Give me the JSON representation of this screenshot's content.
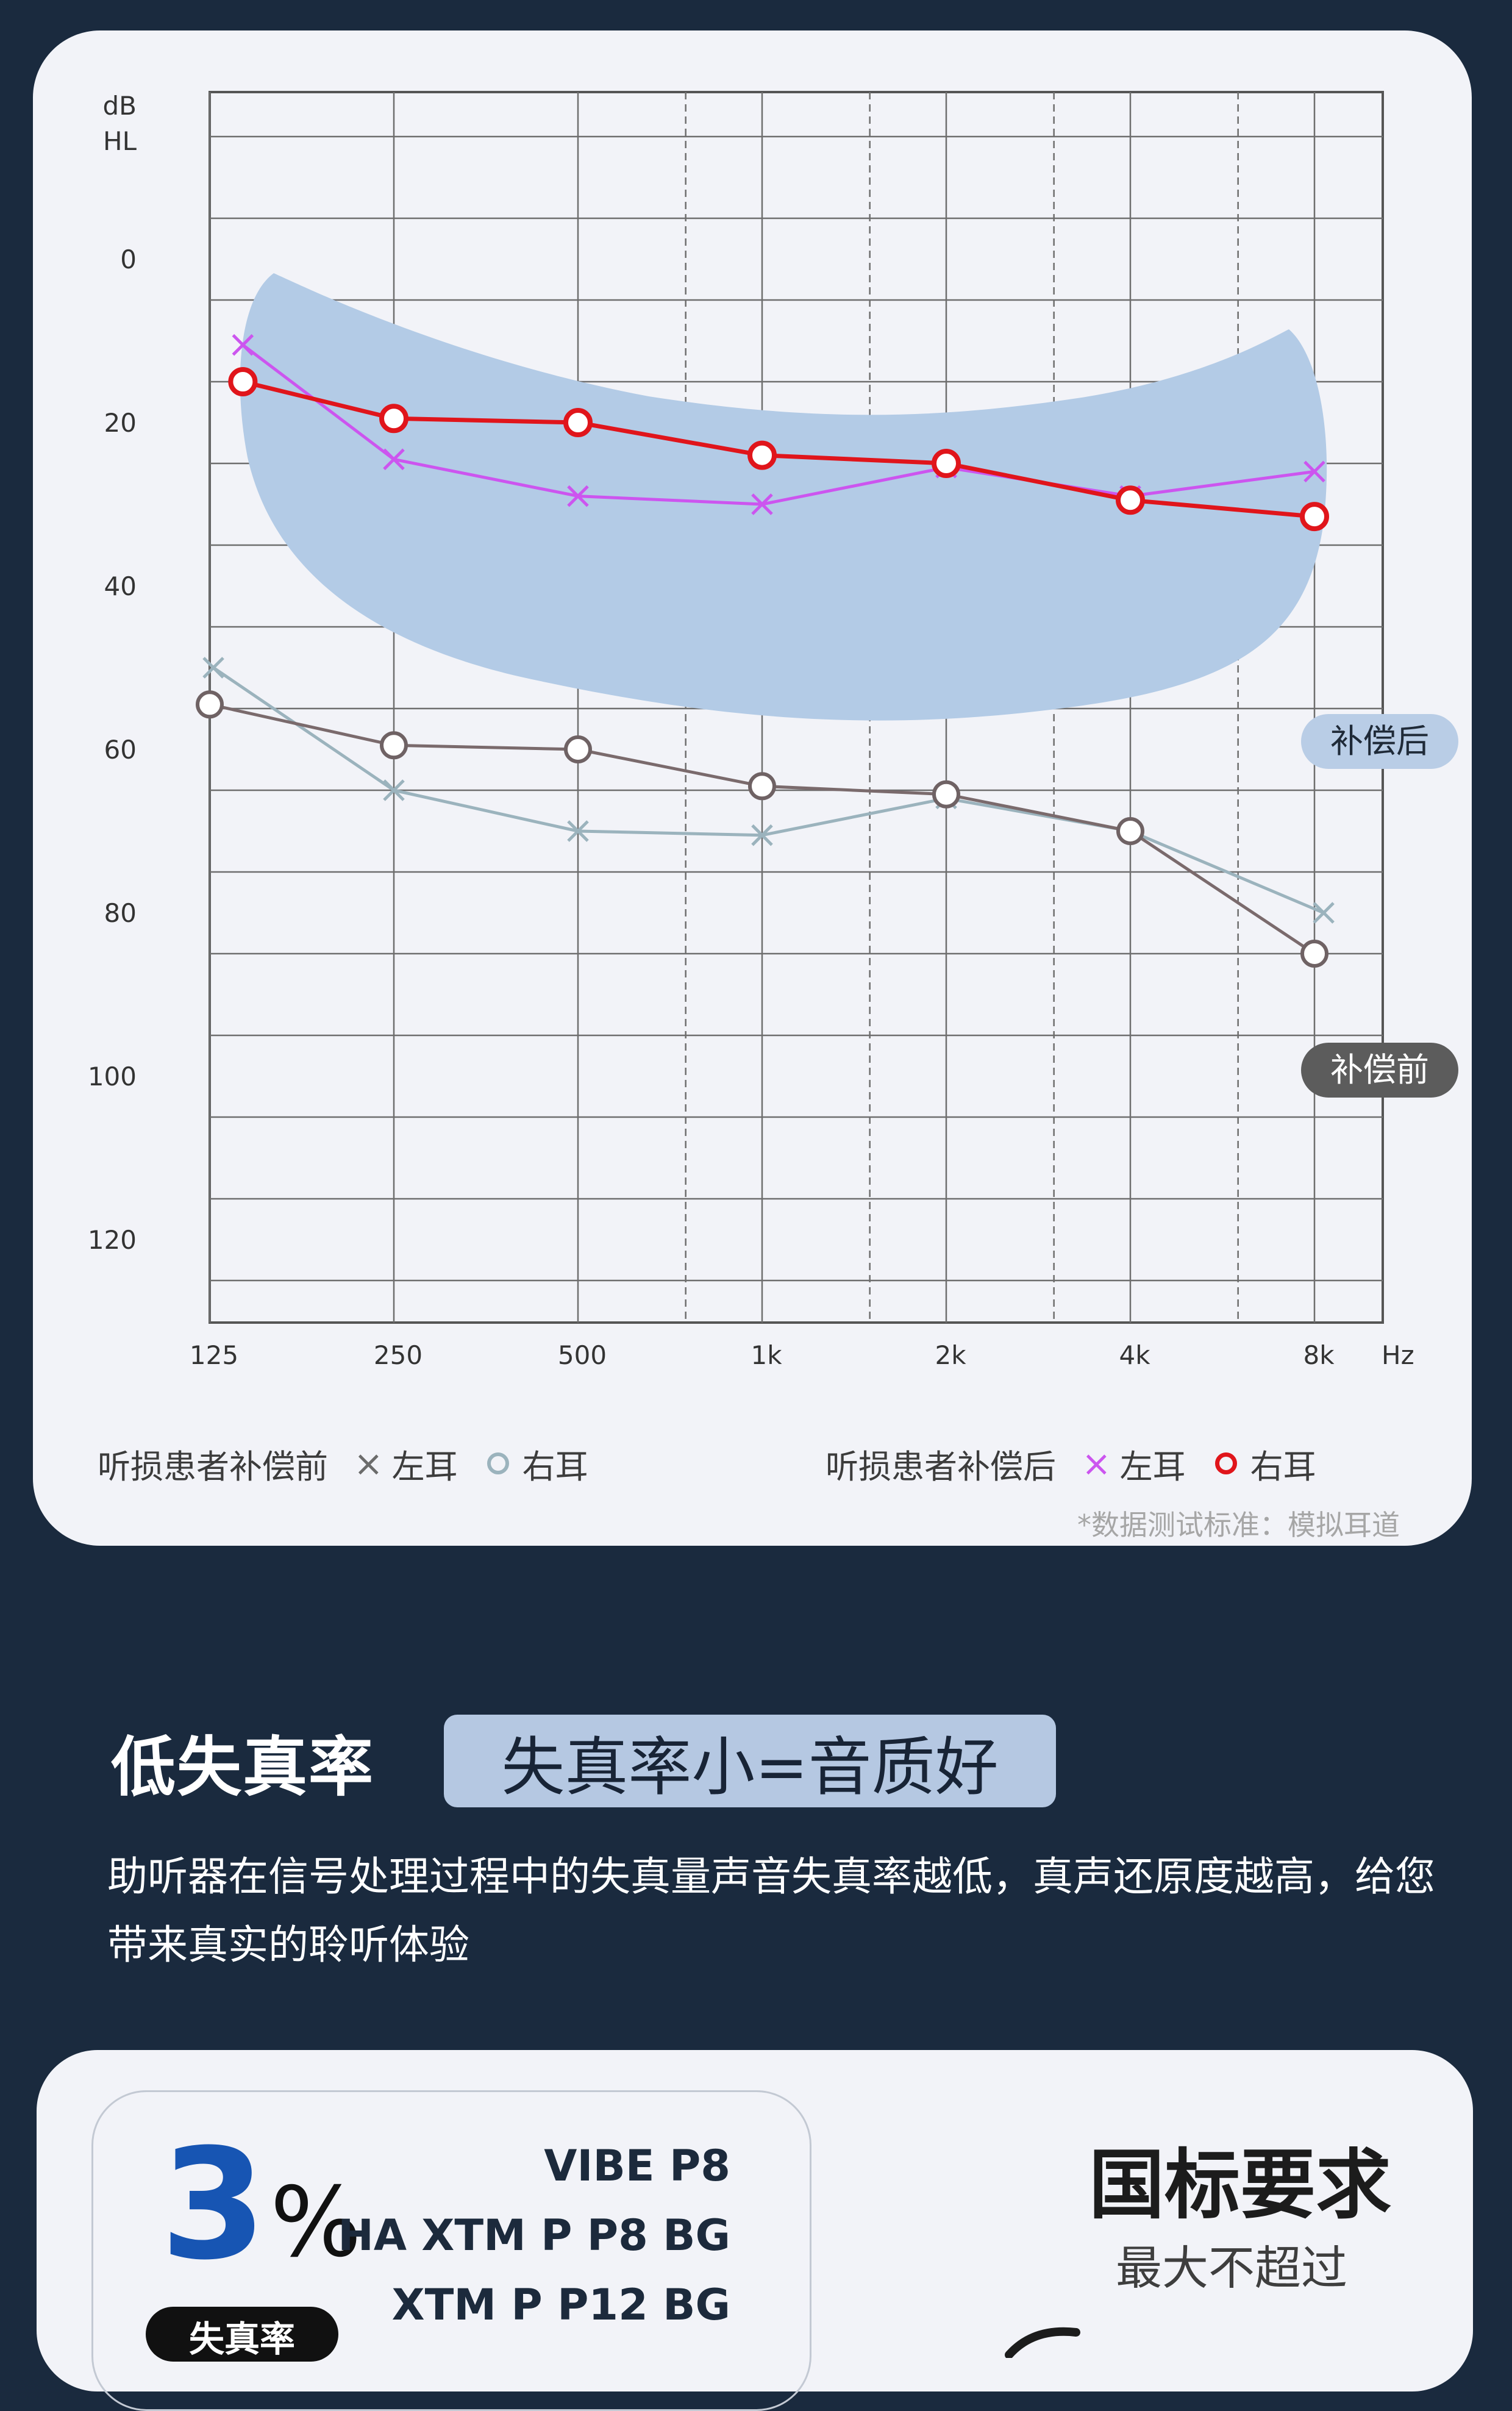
{
  "colors": {
    "page_bg": "#1a2a3e",
    "card_bg": "#f2f3f8",
    "compensated_band": "#b3cbe6",
    "after_right": "#e0151b",
    "after_left": "#cc55ef",
    "before_right": "#7a6a6c",
    "before_left": "#9bb3bd",
    "badge_after": "#b9cde6",
    "badge_before": "#5c5c5c",
    "accent_blue": "#1755b3"
  },
  "chart_data": {
    "type": "line",
    "y_unit_label": [
      "dB",
      "HL"
    ],
    "x_unit_label": "Hz",
    "categories": [
      "125",
      "250",
      "500",
      "1k",
      "2k",
      "4k",
      "8k"
    ],
    "ylim": [
      -20,
      131
    ],
    "y_reversed": true,
    "y_ticks": [
      0,
      20,
      40,
      60,
      80,
      100,
      120
    ],
    "grid": true,
    "grid_dashed_between_octaves": true,
    "band_label_after": "补偿后",
    "band_label_before": "补偿前",
    "series": [
      {
        "group": "after",
        "ear": "right",
        "marker": "circle",
        "x": [
          0.18,
          1.0,
          2.0,
          3.0,
          4.0,
          5.0,
          6.0
        ],
        "values": [
          15,
          19.5,
          20,
          24,
          25,
          29.5,
          31.5
        ]
      },
      {
        "group": "after",
        "ear": "left",
        "marker": "x",
        "x": [
          0.18,
          1.0,
          2.0,
          3.0,
          4.0,
          5.0,
          6.0
        ],
        "values": [
          10.5,
          24.5,
          29,
          30,
          25.5,
          29,
          26
        ]
      },
      {
        "group": "before",
        "ear": "right",
        "marker": "circle",
        "x": [
          0.0,
          1.0,
          2.0,
          3.0,
          4.0,
          5.0,
          6.0
        ],
        "values": [
          54.5,
          59.5,
          60,
          64.5,
          65.5,
          70,
          85
        ]
      },
      {
        "group": "before",
        "ear": "left",
        "marker": "x",
        "x": [
          0.02,
          1.0,
          2.0,
          3.0,
          4.0,
          5.0,
          6.05
        ],
        "values": [
          50,
          65,
          70,
          70.5,
          66,
          70,
          80
        ]
      }
    ]
  },
  "legend": {
    "before_title": "听损患者补偿前",
    "after_title": "听损患者补偿后",
    "left_ear_symbol": "×",
    "left_ear": "左耳",
    "right_ear": "右耳"
  },
  "footnote": "*数据测试标准：模拟耳道",
  "section": {
    "title": "低失真率",
    "tagline": "失真率小=音质好",
    "description": "助听器在信号处理过程中的失真量声音失真率越低，真声还原度越高，给您带来真实的聆听体验"
  },
  "product": {
    "value": "3",
    "percent": "%",
    "metric_label": "失真率",
    "models": [
      "VIBE  P8",
      "HA XTM P P8 BG",
      "XTM P P12 BG"
    ],
    "standard_title": "国标要求",
    "standard_sub": "最大不超过"
  }
}
